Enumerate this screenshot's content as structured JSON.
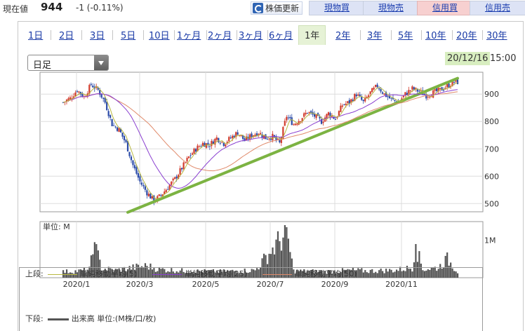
{
  "topbar": {
    "price_label": "現在値",
    "price_value": "944",
    "price_change": "-1 (-0.11%)",
    "refresh_label": "株価更新",
    "buttons": [
      {
        "label": "現物買",
        "style": "blue"
      },
      {
        "label": "現物売",
        "style": "blue"
      },
      {
        "label": "信用買",
        "style": "pink"
      },
      {
        "label": "信用売",
        "style": "blue"
      }
    ]
  },
  "range_tabs": [
    {
      "label": "1日",
      "active": false
    },
    {
      "label": "2日",
      "active": false
    },
    {
      "label": "3日",
      "active": false
    },
    {
      "label": "5日",
      "active": false
    },
    {
      "label": "10日",
      "active": false
    },
    {
      "label": "1ヶ月",
      "active": false
    },
    {
      "label": "2ヶ月",
      "active": false
    },
    {
      "label": "3ヶ月",
      "active": false
    },
    {
      "label": "6ヶ月",
      "active": false
    },
    {
      "label": "1年",
      "active": true
    },
    {
      "label": "2年",
      "active": false
    },
    {
      "label": "3年",
      "active": false
    },
    {
      "label": "5年",
      "active": false
    },
    {
      "label": "10年",
      "active": false
    },
    {
      "label": "20年",
      "active": false
    },
    {
      "label": "30年",
      "active": false
    }
  ],
  "period_select": {
    "value": "日足"
  },
  "timestamp": {
    "date": "20/12/16",
    "time": "15:00"
  },
  "chart_data": {
    "type": "candlestick",
    "price_axis": {
      "ticks": [
        500,
        600,
        700,
        800,
        900
      ],
      "range": [
        470,
        980
      ]
    },
    "volume_axis": {
      "unit_label": "単位: M",
      "ticks": [
        {
          "value": 1,
          "label": "1M"
        }
      ],
      "range": [
        0,
        1.5
      ]
    },
    "x_axis": {
      "ticks": [
        "2020/1",
        "2020/3",
        "2020/5",
        "2020/7",
        "2020/9",
        "2020/11"
      ]
    },
    "series_colors": {
      "up": "#d23b2c",
      "down": "#2a4aa8",
      "ma5": "#b8b840",
      "ma25": "#8a3fd0",
      "ma50": "#e08a6a",
      "trend": "#7cb342",
      "volume": "#555555"
    },
    "price_anchors": [
      [
        0,
        870
      ],
      [
        4,
        885
      ],
      [
        8,
        915
      ],
      [
        12,
        890
      ],
      [
        16,
        935
      ],
      [
        20,
        915
      ],
      [
        24,
        870
      ],
      [
        28,
        790
      ],
      [
        32,
        770
      ],
      [
        36,
        720
      ],
      [
        40,
        640
      ],
      [
        44,
        580
      ],
      [
        48,
        540
      ],
      [
        52,
        510
      ],
      [
        56,
        530
      ],
      [
        60,
        560
      ],
      [
        64,
        590
      ],
      [
        68,
        630
      ],
      [
        72,
        670
      ],
      [
        76,
        700
      ],
      [
        80,
        720
      ],
      [
        84,
        715
      ],
      [
        88,
        740
      ],
      [
        92,
        720
      ],
      [
        96,
        740
      ],
      [
        100,
        760
      ],
      [
        104,
        730
      ],
      [
        108,
        750
      ],
      [
        112,
        760
      ],
      [
        116,
        740
      ],
      [
        120,
        745
      ],
      [
        124,
        720
      ],
      [
        128,
        820
      ],
      [
        132,
        790
      ],
      [
        136,
        810
      ],
      [
        140,
        835
      ],
      [
        144,
        820
      ],
      [
        148,
        800
      ],
      [
        152,
        830
      ],
      [
        156,
        810
      ],
      [
        160,
        860
      ],
      [
        164,
        870
      ],
      [
        168,
        900
      ],
      [
        172,
        870
      ],
      [
        176,
        905
      ],
      [
        180,
        930
      ],
      [
        184,
        900
      ],
      [
        188,
        880
      ],
      [
        192,
        870
      ],
      [
        196,
        900
      ],
      [
        200,
        920
      ],
      [
        204,
        910
      ],
      [
        208,
        895
      ],
      [
        212,
        905
      ],
      [
        216,
        915
      ],
      [
        220,
        930
      ],
      [
        224,
        944
      ],
      [
        226,
        944
      ]
    ],
    "trend_line": [
      [
        37,
        468
      ],
      [
        226,
        958
      ]
    ],
    "volume_anchors": [
      [
        0,
        0.18
      ],
      [
        10,
        0.2
      ],
      [
        15,
        0.25
      ],
      [
        18,
        0.95
      ],
      [
        22,
        0.28
      ],
      [
        30,
        0.22
      ],
      [
        40,
        0.3
      ],
      [
        48,
        0.35
      ],
      [
        55,
        0.25
      ],
      [
        70,
        0.2
      ],
      [
        90,
        0.18
      ],
      [
        110,
        0.22
      ],
      [
        128,
        1.35
      ],
      [
        132,
        0.2
      ],
      [
        150,
        0.18
      ],
      [
        165,
        0.22
      ],
      [
        175,
        0.2
      ],
      [
        190,
        0.22
      ],
      [
        200,
        0.3
      ],
      [
        202,
        0.9
      ],
      [
        206,
        0.25
      ],
      [
        215,
        0.3
      ],
      [
        220,
        0.55
      ],
      [
        226,
        0.18
      ]
    ]
  },
  "legend": {
    "upper_label": "上段:",
    "lower_label": "下段:",
    "upper_items": [
      {
        "label": "単純移動平均(5)",
        "color": "#b8b840"
      },
      {
        "label": "単純移動平均(25)",
        "color": "#8a3fd0"
      },
      {
        "label": "単純移動平均(50)",
        "color": "#e08a6a"
      }
    ],
    "lower_item": {
      "label": "出来高 単位:(M株/口/枚)",
      "color": "#555555"
    }
  }
}
